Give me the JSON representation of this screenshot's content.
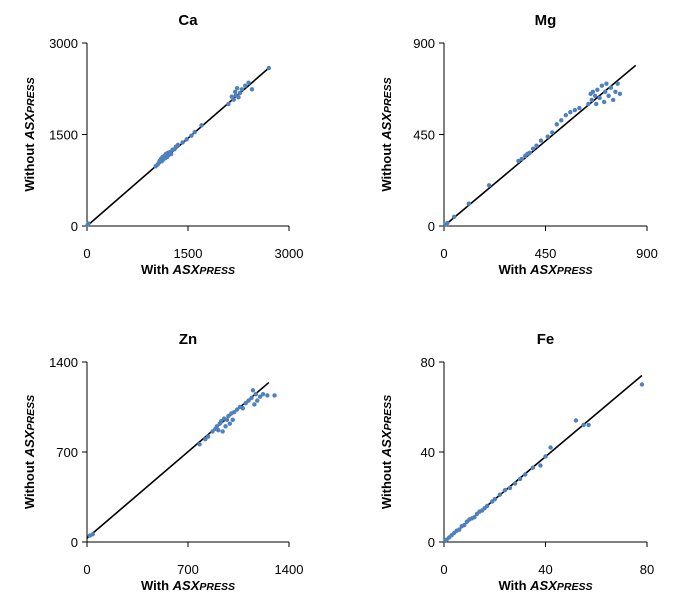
{
  "chart_data": [
    {
      "type": "scatter",
      "title": "Ca",
      "xlabel_prefix": "With ",
      "xlabel_emph": "ASXPRESS",
      "ylabel_prefix": "Without ",
      "ylabel_emph": "ASXPRESS",
      "xlim": [
        0,
        3000
      ],
      "ylim": [
        0,
        3000
      ],
      "xticks": [
        0,
        1500,
        3000
      ],
      "yticks": [
        0,
        1500,
        3000
      ],
      "tick_labels": [
        "0",
        "1500",
        "3000"
      ],
      "marker_color": "#4f81bd",
      "fit_line": {
        "x": [
          0,
          2700
        ],
        "y": [
          0,
          2590
        ]
      },
      "x": [
        10,
        20,
        1020,
        1050,
        1070,
        1080,
        1100,
        1110,
        1120,
        1130,
        1150,
        1160,
        1170,
        1190,
        1200,
        1210,
        1230,
        1250,
        1270,
        1300,
        1320,
        1350,
        1420,
        1480,
        1550,
        1600,
        1700,
        2100,
        2150,
        2180,
        2200,
        2210,
        2230,
        2250,
        2270,
        2300,
        2350,
        2400,
        2450,
        2700
      ],
      "y": [
        20,
        40,
        980,
        1010,
        1040,
        1070,
        1100,
        1060,
        1130,
        1090,
        1150,
        1110,
        1180,
        1130,
        1200,
        1160,
        1210,
        1180,
        1250,
        1260,
        1300,
        1330,
        1370,
        1420,
        1480,
        1540,
        1650,
        2000,
        2120,
        2070,
        2200,
        2140,
        2260,
        2110,
        2180,
        2240,
        2300,
        2350,
        2240,
        2590
      ]
    },
    {
      "type": "scatter",
      "title": "Mg",
      "xlabel_prefix": "With ",
      "xlabel_emph": "ASXPRESS",
      "ylabel_prefix": "Without ",
      "ylabel_emph": "ASXPRESS",
      "xlim": [
        0,
        900
      ],
      "ylim": [
        0,
        900
      ],
      "xticks": [
        0,
        450,
        900
      ],
      "yticks": [
        0,
        450,
        900
      ],
      "tick_labels": [
        "0",
        "450",
        "900"
      ],
      "marker_color": "#4f81bd",
      "fit_line": {
        "x": [
          0,
          850
        ],
        "y": [
          0,
          790
        ]
      },
      "x": [
        5,
        15,
        45,
        110,
        200,
        330,
        345,
        360,
        370,
        380,
        395,
        410,
        430,
        460,
        480,
        500,
        520,
        540,
        560,
        580,
        600,
        640,
        650,
        655,
        660,
        670,
        675,
        680,
        690,
        700,
        710,
        715,
        720,
        730,
        740,
        750,
        760,
        770,
        780
      ],
      "y": [
        5,
        15,
        45,
        110,
        200,
        320,
        330,
        345,
        355,
        360,
        380,
        395,
        420,
        440,
        460,
        500,
        520,
        545,
        560,
        570,
        580,
        600,
        650,
        620,
        660,
        640,
        600,
        670,
        630,
        690,
        610,
        660,
        700,
        640,
        680,
        620,
        660,
        700,
        650
      ]
    },
    {
      "type": "scatter",
      "title": "Zn",
      "xlabel_prefix": "With ",
      "xlabel_emph": "ASXPRESS",
      "ylabel_prefix": "Without ",
      "ylabel_emph": "ASXPRESS",
      "xlim": [
        0,
        1400
      ],
      "ylim": [
        0,
        1400
      ],
      "xticks": [
        0,
        700,
        1400
      ],
      "yticks": [
        0,
        700,
        1400
      ],
      "tick_labels": [
        "0",
        "700",
        "1400"
      ],
      "marker_color": "#4f81bd",
      "fit_line": {
        "x": [
          0,
          1260
        ],
        "y": [
          30,
          1240
        ]
      },
      "x": [
        20,
        40,
        780,
        820,
        840,
        870,
        890,
        900,
        910,
        920,
        930,
        940,
        950,
        960,
        970,
        980,
        990,
        1000,
        1010,
        1020,
        1040,
        1060,
        1080,
        1100,
        1120,
        1140,
        1150,
        1160,
        1170,
        1180,
        1200,
        1220,
        1250,
        1300
      ],
      "y": [
        50,
        60,
        760,
        800,
        820,
        860,
        880,
        900,
        870,
        920,
        940,
        860,
        960,
        900,
        950,
        980,
        920,
        1000,
        950,
        1010,
        1030,
        1050,
        1040,
        1080,
        1100,
        1120,
        1180,
        1070,
        1150,
        1100,
        1130,
        1150,
        1140,
        1140
      ]
    },
    {
      "type": "scatter",
      "title": "Fe",
      "xlabel_prefix": "With ",
      "xlabel_emph": "ASXPRESS",
      "ylabel_prefix": "Without ",
      "ylabel_emph": "ASXPRESS",
      "xlim": [
        0,
        80
      ],
      "ylim": [
        0,
        80
      ],
      "xticks": [
        0,
        40,
        80
      ],
      "yticks": [
        0,
        40,
        80
      ],
      "tick_labels": [
        "0",
        "40",
        "80"
      ],
      "marker_color": "#4f81bd",
      "fit_line": {
        "x": [
          0,
          78
        ],
        "y": [
          0,
          74
        ]
      },
      "x": [
        0.5,
        1,
        2,
        3,
        4,
        5,
        6,
        7,
        8,
        9,
        10,
        11,
        12,
        13,
        14,
        15,
        16,
        17,
        19,
        20,
        22,
        24,
        26,
        28,
        30,
        32,
        35,
        38,
        40,
        42,
        52,
        55,
        57,
        78
      ],
      "y": [
        0.5,
        1,
        2,
        3,
        4,
        5,
        5.5,
        7,
        7.5,
        9,
        10,
        10.5,
        11,
        12.5,
        13.5,
        14,
        15,
        16,
        18,
        19,
        21,
        23,
        24,
        26,
        28,
        30,
        33,
        34,
        38,
        42,
        54,
        52,
        52,
        70
      ]
    }
  ]
}
